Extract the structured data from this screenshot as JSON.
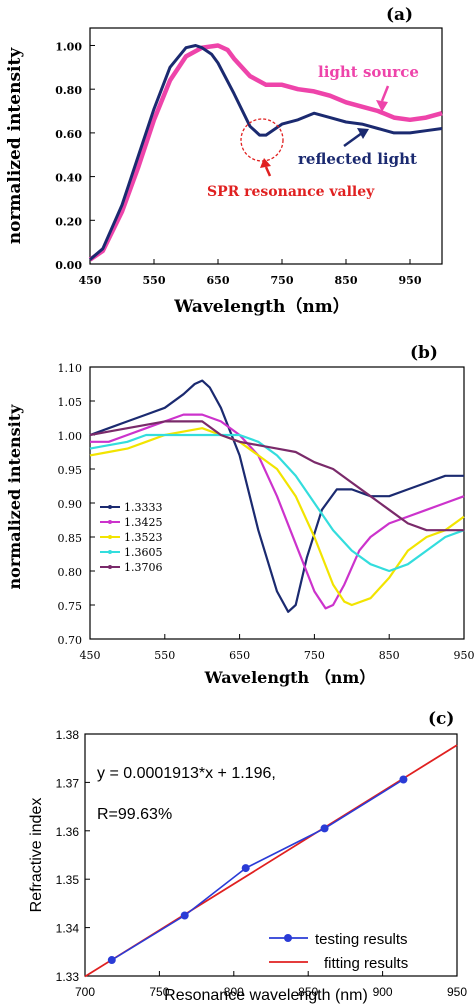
{
  "chart_data": [
    {
      "panel_label": "(a)",
      "type": "line",
      "xlabel": "Wavelength（nm）",
      "ylabel": "normalized intensity",
      "xlim": [
        450,
        1000
      ],
      "ylim": [
        0.0,
        1.08
      ],
      "xticks": [
        "450",
        "550",
        "650",
        "750",
        "850",
        "950"
      ],
      "xtick_values": [
        450,
        550,
        650,
        750,
        850,
        950
      ],
      "yticks": [
        "0.00",
        "0.20",
        "0.40",
        "0.60",
        "0.80",
        "1.00"
      ],
      "ytick_values": [
        0.0,
        0.2,
        0.4,
        0.6,
        0.8,
        1.0
      ],
      "grid": false,
      "annotations": [
        {
          "text": "light source",
          "color": "#ee44aa"
        },
        {
          "text": "reflected light",
          "color": "#1b2a70"
        },
        {
          "text": "SPR resonance valley",
          "color": "#e02020"
        }
      ],
      "series": [
        {
          "name": "light source",
          "color": "#ee44aa",
          "x": [
            450,
            470,
            500,
            525,
            550,
            575,
            600,
            625,
            650,
            665,
            675,
            700,
            725,
            750,
            775,
            800,
            825,
            850,
            875,
            900,
            925,
            950,
            975,
            1000
          ],
          "y": [
            0.02,
            0.06,
            0.24,
            0.44,
            0.66,
            0.84,
            0.95,
            0.99,
            1.0,
            0.98,
            0.94,
            0.86,
            0.82,
            0.82,
            0.8,
            0.79,
            0.77,
            0.74,
            0.72,
            0.7,
            0.67,
            0.66,
            0.67,
            0.69
          ]
        },
        {
          "name": "reflected light",
          "color": "#1b2a70",
          "x": [
            450,
            470,
            500,
            525,
            550,
            575,
            600,
            615,
            625,
            640,
            650,
            675,
            700,
            715,
            725,
            750,
            775,
            800,
            825,
            850,
            875,
            900,
            925,
            950,
            975,
            1000
          ],
          "y": [
            0.02,
            0.07,
            0.27,
            0.49,
            0.71,
            0.9,
            0.99,
            1.0,
            0.99,
            0.96,
            0.92,
            0.78,
            0.63,
            0.59,
            0.59,
            0.64,
            0.66,
            0.69,
            0.67,
            0.65,
            0.64,
            0.62,
            0.6,
            0.6,
            0.61,
            0.62
          ]
        }
      ]
    },
    {
      "panel_label": "(b)",
      "type": "line",
      "xlabel": "Wavelength （nm）",
      "ylabel": "normalized intensity",
      "xlim": [
        450,
        950
      ],
      "ylim": [
        0.7,
        1.1
      ],
      "xticks": [
        "450",
        "550",
        "650",
        "750",
        "850",
        "950"
      ],
      "xtick_values": [
        450,
        550,
        650,
        750,
        850,
        950
      ],
      "yticks": [
        "0.70",
        "0.75",
        "0.80",
        "0.85",
        "0.90",
        "0.95",
        "1.00",
        "1.05",
        "1.10"
      ],
      "ytick_values": [
        0.7,
        0.75,
        0.8,
        0.85,
        0.9,
        0.95,
        1.0,
        1.05,
        1.1
      ],
      "grid": false,
      "legend": "bottom-left",
      "series": [
        {
          "name": "1.3333",
          "color": "#1b2a70",
          "x": [
            450,
            475,
            500,
            525,
            550,
            575,
            590,
            600,
            610,
            625,
            650,
            675,
            700,
            715,
            725,
            740,
            760,
            780,
            800,
            825,
            850,
            875,
            900,
            925,
            950
          ],
          "y": [
            1.0,
            1.01,
            1.02,
            1.03,
            1.04,
            1.06,
            1.075,
            1.08,
            1.07,
            1.04,
            0.97,
            0.86,
            0.77,
            0.74,
            0.75,
            0.82,
            0.89,
            0.92,
            0.92,
            0.91,
            0.91,
            0.92,
            0.93,
            0.94,
            0.94
          ]
        },
        {
          "name": "1.3425",
          "color": "#cc33cc",
          "x": [
            450,
            475,
            500,
            525,
            550,
            575,
            600,
            625,
            650,
            675,
            700,
            725,
            750,
            765,
            775,
            790,
            810,
            825,
            850,
            875,
            900,
            925,
            950
          ],
          "y": [
            0.99,
            0.99,
            1.0,
            1.01,
            1.02,
            1.03,
            1.03,
            1.02,
            1.0,
            0.97,
            0.91,
            0.84,
            0.77,
            0.745,
            0.75,
            0.78,
            0.83,
            0.85,
            0.87,
            0.88,
            0.89,
            0.9,
            0.91
          ]
        },
        {
          "name": "1.3523",
          "color": "#f2e400",
          "x": [
            450,
            475,
            500,
            525,
            550,
            575,
            600,
            625,
            650,
            675,
            700,
            725,
            750,
            775,
            790,
            800,
            825,
            850,
            875,
            900,
            925,
            950
          ],
          "y": [
            0.97,
            0.975,
            0.98,
            0.99,
            1.0,
            1.005,
            1.01,
            1.0,
            0.99,
            0.97,
            0.95,
            0.91,
            0.85,
            0.78,
            0.755,
            0.75,
            0.76,
            0.79,
            0.83,
            0.85,
            0.86,
            0.88
          ]
        },
        {
          "name": "1.3605",
          "color": "#33dddd",
          "x": [
            450,
            475,
            500,
            525,
            550,
            575,
            600,
            625,
            650,
            675,
            700,
            725,
            750,
            775,
            800,
            825,
            850,
            875,
            900,
            925,
            950
          ],
          "y": [
            0.98,
            0.985,
            0.99,
            1.0,
            1.0,
            1.0,
            1.0,
            1.0,
            1.0,
            0.99,
            0.97,
            0.94,
            0.9,
            0.86,
            0.83,
            0.81,
            0.8,
            0.81,
            0.83,
            0.85,
            0.86
          ]
        },
        {
          "name": "1.3706",
          "color": "#7a2a6a",
          "x": [
            450,
            475,
            500,
            525,
            550,
            575,
            600,
            625,
            650,
            675,
            700,
            725,
            750,
            775,
            800,
            825,
            850,
            875,
            900,
            925,
            950
          ],
          "y": [
            1.0,
            1.005,
            1.01,
            1.015,
            1.02,
            1.02,
            1.02,
            1.0,
            0.99,
            0.985,
            0.98,
            0.975,
            0.96,
            0.95,
            0.93,
            0.91,
            0.89,
            0.87,
            0.86,
            0.86,
            0.86
          ]
        }
      ]
    },
    {
      "panel_label": "(c)",
      "type": "scatter",
      "xlabel": "Resonance wavelength (nm)",
      "ylabel": "Refractive index",
      "xlim": [
        700,
        950
      ],
      "ylim": [
        1.33,
        1.38
      ],
      "xticks": [
        "700",
        "750",
        "800",
        "850",
        "900",
        "950"
      ],
      "xtick_values": [
        700,
        750,
        800,
        850,
        900,
        950
      ],
      "yticks": [
        "1.33",
        "1.34",
        "1.35",
        "1.36",
        "1.37",
        "1.38"
      ],
      "ytick_values": [
        1.33,
        1.34,
        1.35,
        1.36,
        1.37,
        1.38
      ],
      "grid": false,
      "legend": "bottom-right",
      "annotations": [
        {
          "text": "y = 0.0001913*x + 1.196,"
        },
        {
          "text": "R=99.63%"
        }
      ],
      "series": [
        {
          "name": "testing results",
          "color": "#2a3bd6",
          "x": [
            718,
            767,
            808,
            861,
            914
          ],
          "y": [
            1.3333,
            1.3425,
            1.3523,
            1.3605,
            1.3706
          ]
        },
        {
          "name": "fitting results",
          "color": "#e02020",
          "x": [
            700,
            950
          ],
          "y": [
            1.3299,
            1.3777
          ]
        }
      ]
    }
  ]
}
